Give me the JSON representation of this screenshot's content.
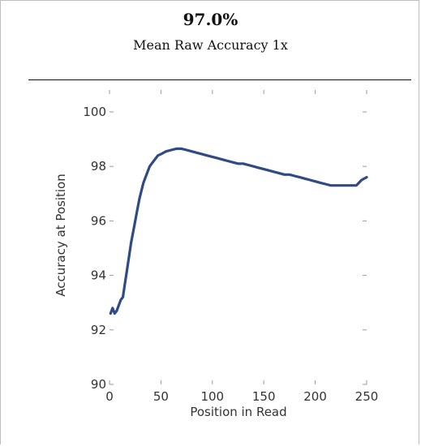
{
  "summary": {
    "value": "97.0%",
    "label": "Mean Raw Accuracy 1x"
  },
  "colors": {
    "line": "#2f4a85",
    "tick": "#999999",
    "text": "#333333"
  },
  "chart_data": {
    "type": "line",
    "xlabel": "Position in Read",
    "ylabel": "Accuracy at Position",
    "xlim": [
      0,
      250
    ],
    "ylim": [
      90,
      100
    ],
    "xticks": [
      0,
      50,
      100,
      150,
      200,
      250
    ],
    "yticks": [
      90,
      92,
      94,
      96,
      98,
      100
    ],
    "grid": false,
    "series": [
      {
        "x": [
          1,
          3,
          5,
          7,
          9,
          11,
          13,
          15,
          17,
          19,
          21,
          23,
          25,
          27,
          29,
          31,
          33,
          35,
          37,
          39,
          41,
          43,
          45,
          47,
          50,
          55,
          60,
          65,
          70,
          75,
          80,
          85,
          90,
          95,
          100,
          105,
          110,
          115,
          120,
          125,
          130,
          135,
          140,
          145,
          150,
          155,
          160,
          165,
          170,
          175,
          180,
          185,
          190,
          195,
          200,
          205,
          210,
          215,
          220,
          225,
          230,
          235,
          240,
          245,
          250
        ],
        "values": [
          92.6,
          92.8,
          92.6,
          92.7,
          92.9,
          93.1,
          93.2,
          93.7,
          94.2,
          94.7,
          95.2,
          95.6,
          96.0,
          96.4,
          96.8,
          97.1,
          97.4,
          97.6,
          97.8,
          98.0,
          98.1,
          98.2,
          98.3,
          98.4,
          98.45,
          98.55,
          98.6,
          98.65,
          98.65,
          98.6,
          98.55,
          98.5,
          98.45,
          98.4,
          98.35,
          98.3,
          98.25,
          98.2,
          98.15,
          98.1,
          98.1,
          98.05,
          98.0,
          97.95,
          97.9,
          97.85,
          97.8,
          97.75,
          97.7,
          97.7,
          97.65,
          97.6,
          97.55,
          97.5,
          97.45,
          97.4,
          97.35,
          97.3,
          97.3,
          97.3,
          97.3,
          97.3,
          97.3,
          97.5,
          97.6
        ]
      }
    ]
  }
}
